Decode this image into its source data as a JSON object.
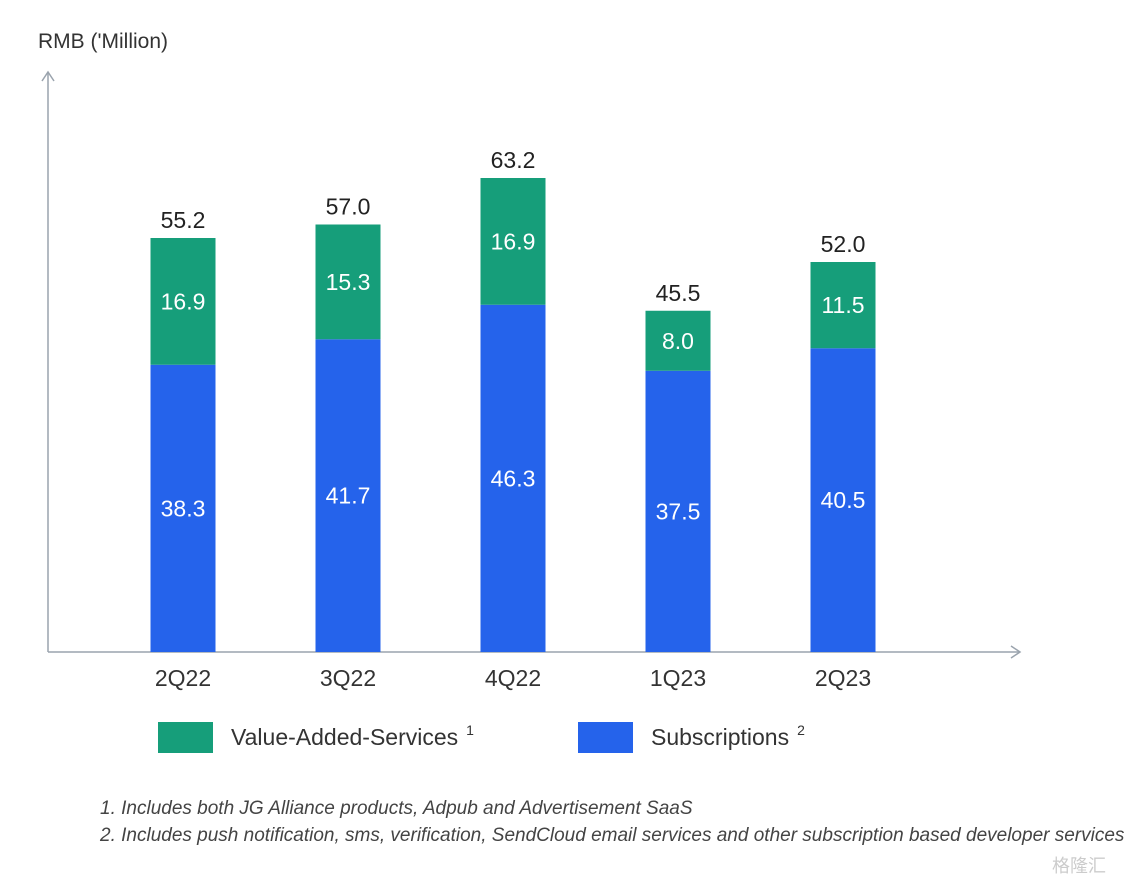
{
  "chart_data": {
    "type": "bar",
    "stacked": true,
    "ylabel": "RMB ('Million)",
    "categories": [
      "2Q22",
      "3Q22",
      "4Q22",
      "1Q23",
      "2Q23"
    ],
    "series": [
      {
        "name": "Subscriptions",
        "superscript": "2",
        "color": "#2563EB",
        "values": [
          38.3,
          41.7,
          46.3,
          37.5,
          40.5
        ]
      },
      {
        "name": "Value-Added-Services",
        "superscript": "1",
        "color": "#169E7A",
        "values": [
          16.9,
          15.3,
          16.9,
          8.0,
          11.5
        ]
      }
    ],
    "totals": [
      "55.2",
      "57.0",
      "63.2",
      "45.5",
      "52.0"
    ],
    "segment_labels": {
      "Subscriptions": [
        "38.3",
        "41.7",
        "46.3",
        "37.5",
        "40.5"
      ],
      "Value-Added-Services": [
        "16.9",
        "15.3",
        "16.9",
        "8.0",
        "11.5"
      ]
    },
    "grid": false,
    "legend_position": "bottom"
  },
  "legend": {
    "vas_label": "Value-Added-Services",
    "vas_sup": "1",
    "sub_label": "Subscriptions",
    "sub_sup": "2"
  },
  "footnotes": {
    "note1": "1. Includes both JG Alliance products, Adpub and Advertisement SaaS",
    "note2": "2. Includes push notification, sms, verification, SendCloud email services and other subscription based developer services"
  },
  "watermark": "格隆汇"
}
